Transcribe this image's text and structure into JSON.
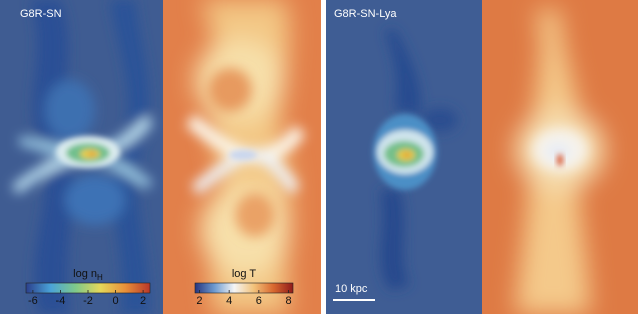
{
  "panels": [
    {
      "label": "G8R-SN"
    },
    {
      "label": "G8R-SN-Lya"
    }
  ],
  "colorbars": [
    {
      "label": {
        "main": "log n",
        "sub": "H"
      },
      "lim": [
        -6.5,
        2.5
      ],
      "ticks": [
        -6,
        -4,
        -2,
        0,
        2
      ],
      "colors": [
        "#2b3f8c",
        "#4aa3d8",
        "#7fc98a",
        "#e6d85a",
        "#e8903a",
        "#b8372a"
      ]
    },
    {
      "label": {
        "main": "log T"
      },
      "lim": [
        1.7,
        8.3
      ],
      "ticks": [
        2,
        4,
        6,
        8
      ],
      "colors": [
        "#27357f",
        "#6e9bd0",
        "#f5f5f5",
        "#f2c27a",
        "#d9682f",
        "#8f1a1a"
      ]
    }
  ],
  "scale_bar": {
    "label": "10 kpc"
  }
}
